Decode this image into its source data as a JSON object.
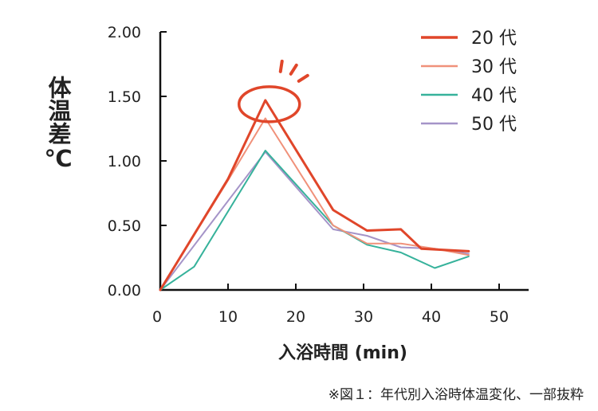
{
  "chart_data": {
    "type": "line",
    "ylabel": "体温差℃",
    "xlabel": "入浴時間 (min)",
    "xlim": [
      0,
      55
    ],
    "ylim": [
      0,
      2
    ],
    "xticks": [
      "0",
      "10",
      "20",
      "30",
      "40",
      "50"
    ],
    "yticks": [
      "0.00",
      "0.50",
      "1.00",
      "1.50",
      "2.00"
    ],
    "legend_position": "top-right",
    "annotation": "peak of 20代 circled",
    "series": [
      {
        "name": "20 代",
        "color": "#e0462a",
        "width": 3,
        "x": [
          0,
          10,
          15.5,
          25.5,
          30.5,
          35.5,
          38.5,
          45.5
        ],
        "y": [
          0,
          0.86,
          1.47,
          0.62,
          0.46,
          0.47,
          0.32,
          0.3
        ]
      },
      {
        "name": "30 代",
        "color": "#f0917a",
        "width": 2,
        "x": [
          0,
          10,
          15.5,
          25.5,
          30.5,
          35.5,
          40.5,
          45.5
        ],
        "y": [
          0,
          0.85,
          1.33,
          0.5,
          0.36,
          0.36,
          0.32,
          0.27
        ]
      },
      {
        "name": "40 代",
        "color": "#36b29b",
        "width": 2,
        "x": [
          0,
          5,
          15.5,
          25.5,
          30.5,
          35.5,
          40.5,
          45.5
        ],
        "y": [
          0,
          0.18,
          1.08,
          0.5,
          0.35,
          0.29,
          0.17,
          0.26
        ]
      },
      {
        "name": "50 代",
        "color": "#a594c8",
        "width": 2,
        "x": [
          0,
          15.5,
          25.5,
          30.5,
          35.5,
          40.5,
          45.5
        ],
        "y": [
          0,
          1.07,
          0.47,
          0.42,
          0.33,
          0.32,
          0.28
        ]
      }
    ]
  },
  "caption": "※図１：年代別入浴時体温変化、一部抜粋"
}
